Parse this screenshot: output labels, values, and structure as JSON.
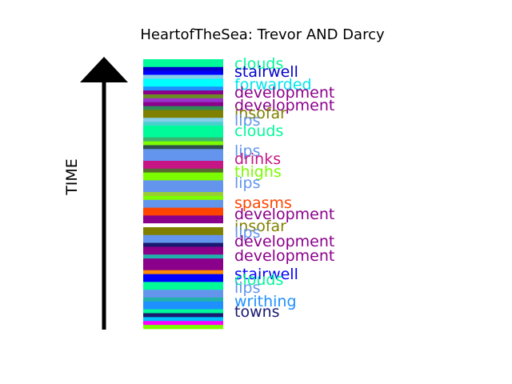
{
  "chart_data": {
    "type": "bar",
    "title": "HeartofTheSea: Trevor AND Darcy",
    "ylabel": "TIME",
    "orientation": "stacked-timeline",
    "segments": [
      {
        "color": "#00fa9a"
      },
      {
        "color": "#00fa9a"
      },
      {
        "color": "#0000cd"
      },
      {
        "color": "#0000ff"
      },
      {
        "color": "#87ceeb"
      },
      {
        "color": "#00ffff"
      },
      {
        "color": "#00ffff"
      },
      {
        "color": "#1e90ff"
      },
      {
        "color": "#8b008b"
      },
      {
        "color": "#6b8e23"
      },
      {
        "color": "#9932cc"
      },
      {
        "color": "#8b008b"
      },
      {
        "color": "#2e8b57"
      },
      {
        "color": "#808000"
      },
      {
        "color": "#808000"
      },
      {
        "color": "#87ceeb"
      },
      {
        "color": "#48d1cc"
      },
      {
        "color": "#00fa9a"
      },
      {
        "color": "#00fa9a"
      },
      {
        "color": "#00fa9a"
      },
      {
        "color": "#3cb371"
      },
      {
        "color": "#7cfc00"
      },
      {
        "color": "#2f4f4f"
      },
      {
        "color": "#6495ed"
      },
      {
        "color": "#6495ed"
      },
      {
        "color": "#6495ed"
      },
      {
        "color": "#c71585"
      },
      {
        "color": "#c71585"
      },
      {
        "color": "#556b2f"
      },
      {
        "color": "#7cfc00"
      },
      {
        "color": "#7cfc00"
      },
      {
        "color": "#6495ed"
      },
      {
        "color": "#6495ed"
      },
      {
        "color": "#6495ed"
      },
      {
        "color": "#9acd32"
      },
      {
        "color": "#7cfc00"
      },
      {
        "color": "#6495ed"
      },
      {
        "color": "#6495ed"
      },
      {
        "color": "#ff4500"
      },
      {
        "color": "#ff4500"
      },
      {
        "color": "#8b008b"
      },
      {
        "color": "#8b008b"
      },
      {
        "color": "#ffffff"
      },
      {
        "color": "#808000"
      },
      {
        "color": "#808000"
      },
      {
        "color": "#6495ed"
      },
      {
        "color": "#6495ed"
      },
      {
        "color": "#191970"
      },
      {
        "color": "#8b008b"
      },
      {
        "color": "#8b008b"
      },
      {
        "color": "#20b2aa"
      },
      {
        "color": "#8b008b"
      },
      {
        "color": "#8b008b"
      },
      {
        "color": "#8b008b"
      },
      {
        "color": "#ff8c00"
      },
      {
        "color": "#0000ff"
      },
      {
        "color": "#0000ff"
      },
      {
        "color": "#00fa9a"
      },
      {
        "color": "#00fa9a"
      },
      {
        "color": "#6495ed"
      },
      {
        "color": "#6495ed"
      },
      {
        "color": "#20b2aa"
      },
      {
        "color": "#1e90ff"
      },
      {
        "color": "#1e90ff"
      },
      {
        "color": "#00fa9a"
      },
      {
        "color": "#191970"
      },
      {
        "color": "#00bfff"
      },
      {
        "color": "#ff00ff"
      },
      {
        "color": "#7cfc00"
      }
    ],
    "labels": [
      {
        "text": "clouds",
        "color": "#00fa9a"
      },
      {
        "text": "stairwell",
        "color": "#0000cd"
      },
      {
        "text": "forwarded",
        "color": "#00e5ee"
      },
      {
        "text": "development",
        "color": "#8b008b"
      },
      {
        "text": "development",
        "color": "#8b008b"
      },
      {
        "text": "insofar",
        "color": "#808000"
      },
      {
        "text": "lips",
        "color": "#6495ed"
      },
      {
        "text": "clouds",
        "color": "#00fa9a"
      },
      {
        "text": "lips",
        "color": "#6495ed"
      },
      {
        "text": "drinks",
        "color": "#c71585"
      },
      {
        "text": "thighs",
        "color": "#7cfc00"
      },
      {
        "text": "lips",
        "color": "#6495ed"
      },
      {
        "text": "spasms",
        "color": "#ff4500"
      },
      {
        "text": "development",
        "color": "#8b008b"
      },
      {
        "text": "insofar",
        "color": "#808000"
      },
      {
        "text": "lips",
        "color": "#6495ed"
      },
      {
        "text": "development",
        "color": "#8b008b"
      },
      {
        "text": "development",
        "color": "#8b008b"
      },
      {
        "text": "stairwell",
        "color": "#0000ff"
      },
      {
        "text": "clouds",
        "color": "#00fa9a"
      },
      {
        "text": "lips",
        "color": "#6495ed"
      },
      {
        "text": "writhing",
        "color": "#1e90ff"
      },
      {
        "text": "towns",
        "color": "#191970"
      }
    ]
  }
}
